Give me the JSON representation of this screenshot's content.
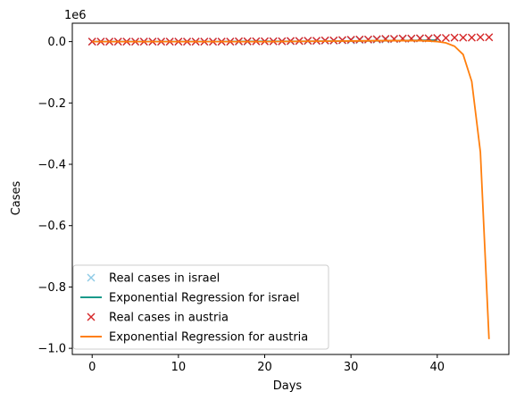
{
  "chart_data": {
    "type": "line",
    "xlabel": "Days",
    "ylabel": "Cases",
    "y_offset_label": "1e6",
    "xlim": [
      -2.3,
      48.3
    ],
    "ylim": [
      -1.02,
      0.06
    ],
    "x_ticks": [
      0,
      10,
      20,
      30,
      40
    ],
    "x_tick_labels": [
      "0",
      "10",
      "20",
      "30",
      "40"
    ],
    "y_ticks": [
      0.0,
      -0.2,
      -0.4,
      -0.6,
      -0.8,
      -1.0
    ],
    "y_tick_labels": [
      "0.0",
      "−0.2",
      "−0.4",
      "−0.6",
      "−0.8",
      "−1.0"
    ],
    "grid": false,
    "legend_position": "lower-left",
    "series": [
      {
        "name": "Real cases in israel",
        "style": "marker-x",
        "color": "#8ecae6",
        "x": [
          0,
          1,
          2,
          3,
          4,
          5,
          6,
          7,
          8,
          9,
          10,
          11,
          12,
          13,
          14,
          15,
          16,
          17,
          18,
          19,
          20,
          21,
          22,
          23,
          24,
          25,
          26,
          27,
          28,
          29,
          30,
          31,
          32,
          33,
          34,
          35,
          36,
          37,
          38,
          39,
          40
        ],
        "y": [
          0.0,
          0.0,
          0.0,
          0.0,
          0.0,
          0.0,
          0.0,
          0.0,
          0.0,
          0.0,
          0.0,
          0.0,
          0.0,
          0.0,
          0.0,
          0.0,
          0.0,
          0.0,
          0.0,
          0.001,
          0.001,
          0.001,
          0.001,
          0.001,
          0.002,
          0.002,
          0.002,
          0.003,
          0.003,
          0.004,
          0.004,
          0.005,
          0.006,
          0.006,
          0.007,
          0.008,
          0.009,
          0.009,
          0.01,
          0.01,
          0.011
        ]
      },
      {
        "name": "Exponential Regression for israel",
        "style": "line",
        "color": "#1a9a8a",
        "x": [
          0,
          5,
          10,
          15,
          20,
          25,
          30,
          35,
          40
        ],
        "y": [
          0.0,
          0.0,
          0.0,
          0.0,
          0.001,
          0.001,
          0.002,
          0.003,
          0.005
        ]
      },
      {
        "name": "Real cases in austria",
        "style": "marker-x",
        "color": "#d62728",
        "x": [
          0,
          1,
          2,
          3,
          4,
          5,
          6,
          7,
          8,
          9,
          10,
          11,
          12,
          13,
          14,
          15,
          16,
          17,
          18,
          19,
          20,
          21,
          22,
          23,
          24,
          25,
          26,
          27,
          28,
          29,
          30,
          31,
          32,
          33,
          34,
          35,
          36,
          37,
          38,
          39,
          40,
          41,
          42,
          43,
          44,
          45,
          46
        ],
        "y": [
          0.0,
          0.0,
          0.0,
          0.0,
          0.0,
          0.0,
          0.0,
          0.0,
          0.0,
          0.0,
          0.0,
          0.0,
          0.0,
          0.0,
          0.0,
          0.0,
          0.0,
          0.001,
          0.001,
          0.001,
          0.001,
          0.001,
          0.001,
          0.002,
          0.002,
          0.003,
          0.003,
          0.004,
          0.004,
          0.005,
          0.006,
          0.007,
          0.007,
          0.008,
          0.009,
          0.009,
          0.01,
          0.01,
          0.011,
          0.011,
          0.012,
          0.012,
          0.013,
          0.013,
          0.013,
          0.014,
          0.014
        ]
      },
      {
        "name": "Exponential Regression for austria",
        "style": "line",
        "color": "#ff7f0e",
        "x": [
          0,
          5,
          10,
          15,
          20,
          25,
          30,
          33,
          35,
          37,
          38,
          39,
          40,
          41,
          42,
          43,
          44,
          45,
          46
        ],
        "y": [
          0.0,
          0.0,
          0.0,
          0.0,
          0.0,
          0.001,
          0.002,
          0.003,
          0.003,
          0.003,
          0.003,
          0.002,
          0.0,
          -0.004,
          -0.015,
          -0.042,
          -0.13,
          -0.36,
          -0.97
        ]
      }
    ]
  }
}
